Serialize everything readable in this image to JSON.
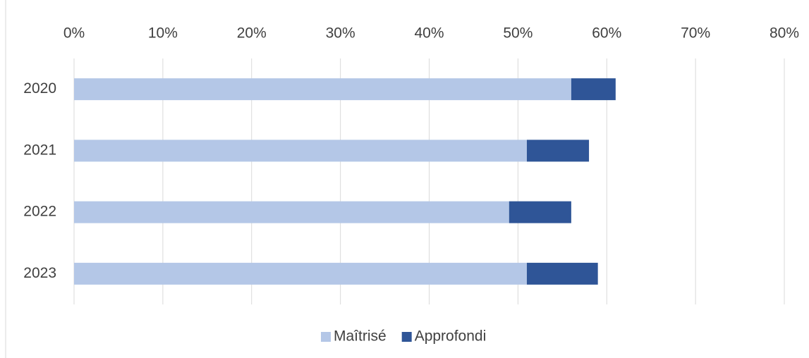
{
  "chart_data": {
    "type": "bar",
    "orientation": "horizontal",
    "stacked": true,
    "categories": [
      "2020",
      "2021",
      "2022",
      "2023"
    ],
    "series": [
      {
        "name": "Maîtrisé",
        "color": "#b4c7e7",
        "values": [
          56,
          51,
          49,
          51
        ]
      },
      {
        "name": "Approfondi",
        "color": "#2f5597",
        "values": [
          5,
          7,
          7,
          8
        ]
      }
    ],
    "xlim": [
      0,
      80
    ],
    "xticks": [
      {
        "value": 0,
        "label": "0%"
      },
      {
        "value": 10,
        "label": "10%"
      },
      {
        "value": 20,
        "label": "20%"
      },
      {
        "value": 30,
        "label": "30%"
      },
      {
        "value": 40,
        "label": "40%"
      },
      {
        "value": 50,
        "label": "50%"
      },
      {
        "value": 60,
        "label": "60%"
      },
      {
        "value": 70,
        "label": "70%"
      },
      {
        "value": 80,
        "label": "80%"
      }
    ],
    "grid": true,
    "legend": "bottom"
  }
}
